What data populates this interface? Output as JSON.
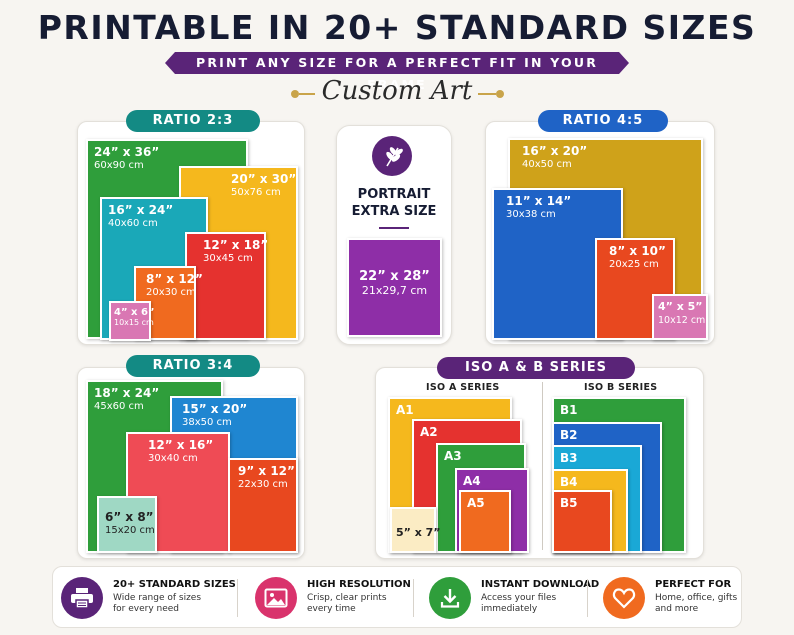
{
  "header": {
    "title": "PRINTABLE IN 20+ STANDARD SIZES",
    "subtitle": "PRINT ANY SIZE FOR A PERFECT FIT IN YOUR FRAME",
    "brand": "Custom Art"
  },
  "colors": {
    "purple": "#5a2478",
    "teal": "#138a84",
    "blue": "#1f63c6",
    "gold": "#c9a44a",
    "green": "#2f9e3b",
    "yellow": "#f5b81d",
    "cyan": "#1aa8b8",
    "red": "#e5322f",
    "orange": "#f06a1f",
    "pink": "#d977b3",
    "violet": "#8e2ea7"
  },
  "ratio23": {
    "title": "RATIO 2:3",
    "items": [
      {
        "size": "24” x 36”",
        "cm": "60x90 cm"
      },
      {
        "size": "20” x 30”",
        "cm": "50x76 cm"
      },
      {
        "size": "16” x 24”",
        "cm": "40x60 cm"
      },
      {
        "size": "12” x 18”",
        "cm": "30x45 cm"
      },
      {
        "size": "8” x 12”",
        "cm": "20x30 cm"
      },
      {
        "size": "4” x 6”",
        "cm": "10x15 cm"
      }
    ]
  },
  "portrait": {
    "line1": "PORTRAIT",
    "line2": "EXTRA SIZE",
    "icon": "leaf-icon",
    "size": "22” x 28”",
    "cm": "21x29,7 cm"
  },
  "ratio45": {
    "title": "RATIO 4:5",
    "items": [
      {
        "size": "16” x 20”",
        "cm": "40x50 cm"
      },
      {
        "size": "11” x 14”",
        "cm": "30x38 cm"
      },
      {
        "size": "8” x 10”",
        "cm": "20x25 cm"
      },
      {
        "size": "4” x 5”",
        "cm": "10x12 cm"
      }
    ]
  },
  "ratio34": {
    "title": "RATIO 3:4",
    "items": [
      {
        "size": "18” x 24”",
        "cm": "45x60 cm"
      },
      {
        "size": "15” x 20”",
        "cm": "38x50 cm"
      },
      {
        "size": "12” x 16”",
        "cm": "30x40 cm"
      },
      {
        "size": "9” x 12”",
        "cm": "22x30 cm"
      },
      {
        "size": "6” x 8”",
        "cm": "15x20 cm"
      }
    ]
  },
  "iso": {
    "title": "ISO A & B SERIES",
    "a_title": "ISO A SERIES",
    "b_title": "ISO B SERIES",
    "a_items": [
      "A1",
      "A2",
      "A3",
      "A4",
      "A5"
    ],
    "a_extra": "5” x 7”",
    "b_items": [
      "B1",
      "B2",
      "B3",
      "B4",
      "B5"
    ]
  },
  "features": [
    {
      "icon": "printer-icon",
      "title": "20+ STANDARD SIZES",
      "desc": "Wide range of sizes for every need"
    },
    {
      "icon": "image-icon",
      "title": "HIGH RESOLUTION",
      "desc": "Crisp, clear prints every time"
    },
    {
      "icon": "download-icon",
      "title": "INSTANT DOWNLOAD",
      "desc": "Access your files immediately"
    },
    {
      "icon": "heart-icon",
      "title": "PERFECT FOR",
      "desc": "Home, office, gifts and more"
    }
  ]
}
